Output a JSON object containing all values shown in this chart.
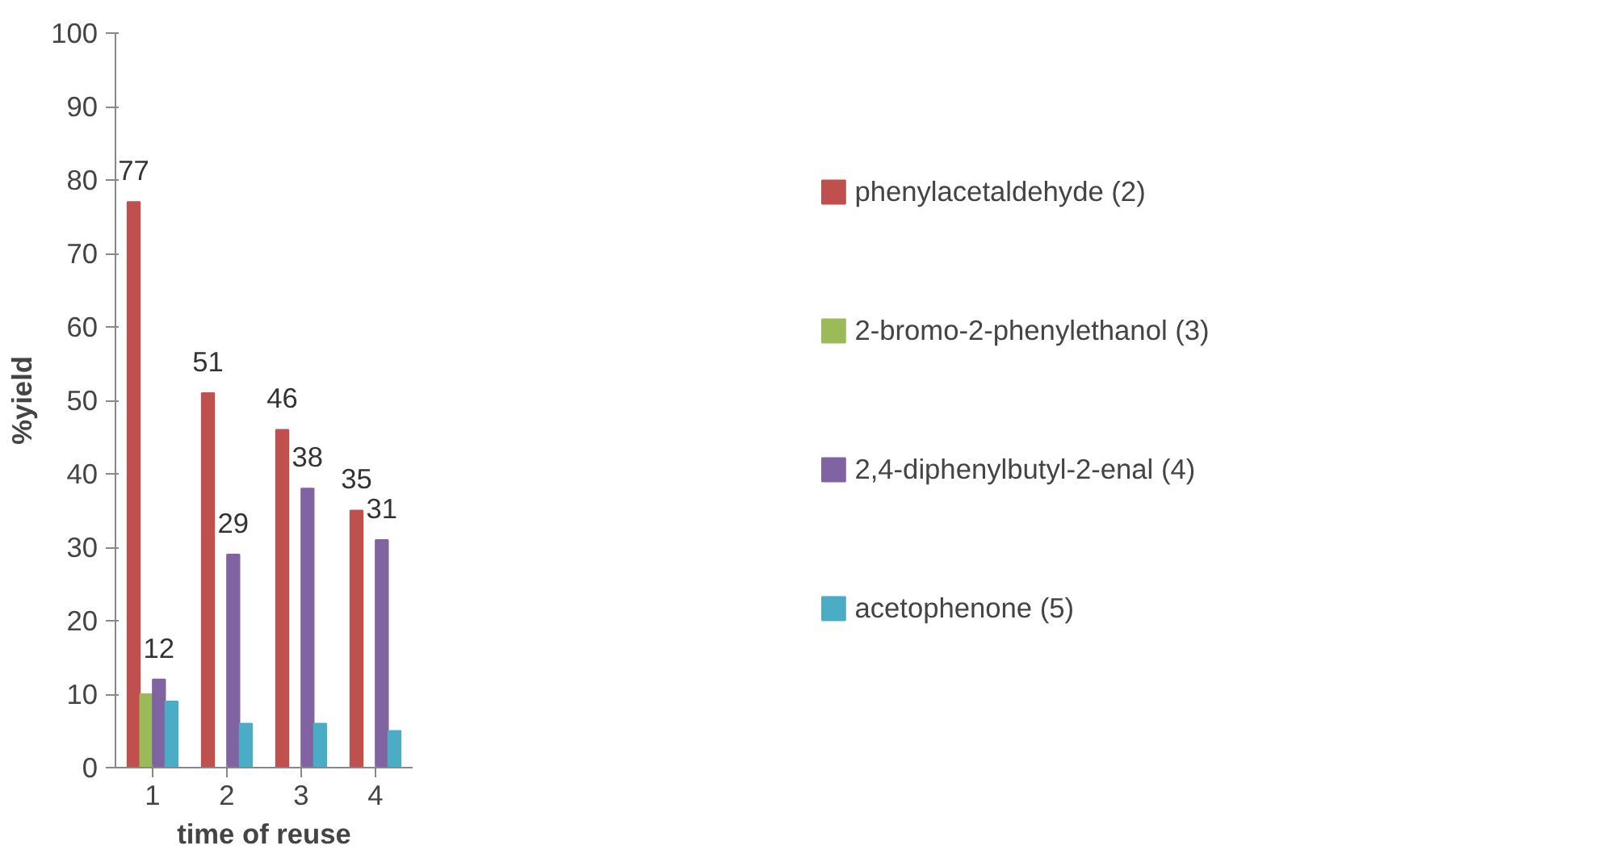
{
  "chart_data": {
    "type": "bar",
    "xlabel": "time of reuse",
    "ylabel": "%yield",
    "categories": [
      "1",
      "2",
      "3",
      "4"
    ],
    "series": [
      {
        "name": "phenylacetaldehyde (2)",
        "color": "#c0504d",
        "values": [
          77,
          51,
          46,
          35
        ],
        "value_labels": [
          "77",
          "51",
          "46",
          "35"
        ]
      },
      {
        "name": "2-bromo-2-phenylethanol (3)",
        "color": "#9bbb59",
        "values": [
          10,
          null,
          null,
          null
        ]
      },
      {
        "name": "2,4-diphenylbutyl-2-enal (4)",
        "color": "#8064a2",
        "values": [
          12,
          29,
          38,
          31
        ],
        "value_labels": [
          "12",
          "29",
          "38",
          "31"
        ]
      },
      {
        "name": "acetophenone (5)",
        "color": "#4bacc6",
        "values": [
          9,
          6,
          6,
          5
        ]
      }
    ],
    "ylim": [
      0,
      100
    ],
    "yticks": [
      0,
      10,
      20,
      30,
      40,
      50,
      60,
      70,
      80,
      90,
      100
    ],
    "grid": false,
    "legend": "right"
  }
}
